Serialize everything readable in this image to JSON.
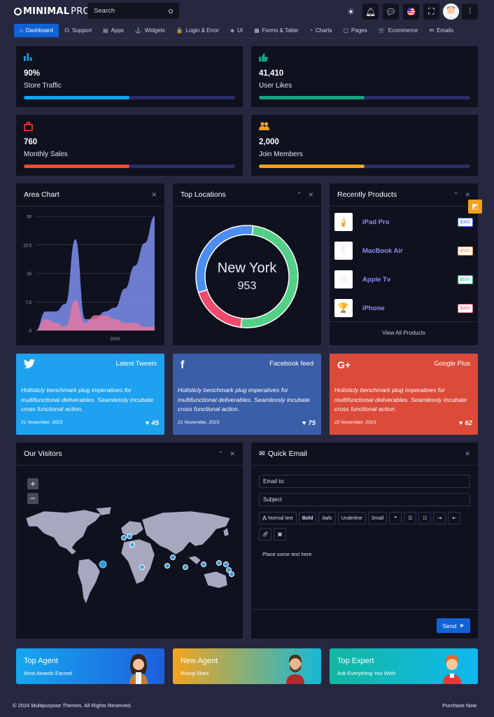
{
  "brand": {
    "bold": "MINIMAL",
    "thin": "PRO"
  },
  "search": {
    "placeholder": "Search"
  },
  "topbar_icons": [
    "sun-icon",
    "bell-icon",
    "chat-icon",
    "flag-us-icon",
    "fullscreen-icon",
    "user-avatar",
    "sliders-icon"
  ],
  "nav": [
    {
      "label": "Dashboard",
      "icon": "home-icon",
      "glyph": "⌂"
    },
    {
      "label": "Support",
      "icon": "headset-icon",
      "glyph": "☊"
    },
    {
      "label": "Apps",
      "icon": "apps-icon",
      "glyph": "▤"
    },
    {
      "label": "Widgets",
      "icon": "widgets-icon",
      "glyph": "⚓"
    },
    {
      "label": "Login & Error",
      "icon": "lock-icon",
      "glyph": "🔒"
    },
    {
      "label": "UI",
      "icon": "cube-icon",
      "glyph": "◈"
    },
    {
      "label": "Forms & Table",
      "icon": "table-icon",
      "glyph": "▦"
    },
    {
      "label": "Charts",
      "icon": "chart-icon",
      "glyph": "◔"
    },
    {
      "label": "Pages",
      "icon": "page-icon",
      "glyph": "▢"
    },
    {
      "label": "Ecommerce",
      "icon": "cart-icon",
      "glyph": "🛒"
    },
    {
      "label": "Emails",
      "icon": "mail-icon",
      "glyph": "✉"
    }
  ],
  "stats": [
    {
      "value": "90%",
      "label": "Store Traffic",
      "progress": 0.5,
      "color": "#0aa8f0",
      "icon": "bar-chart-icon",
      "glyph": "📊"
    },
    {
      "value": "41,410",
      "label": "User Likes",
      "progress": 0.5,
      "color": "#14a485",
      "icon": "thumbs-up-icon",
      "glyph": "👍"
    },
    {
      "value": "760",
      "label": "Monthly Sales",
      "progress": 0.5,
      "color": "#ee4e2f",
      "icon": "shopping-bag-icon",
      "glyph": "👜"
    },
    {
      "value": "2,000",
      "label": "Join Members",
      "progress": 0.5,
      "color": "#f3a01c",
      "icon": "users-icon",
      "glyph": "👥"
    }
  ],
  "area_chart": {
    "title": "Area Chart"
  },
  "chart_data": {
    "type": "area",
    "x": [
      2018.0,
      2018.25,
      2018.5,
      2018.75,
      2019.0,
      2019.25,
      2019.5,
      2019.75,
      2020.0,
      2020.25,
      2020.5,
      2020.75,
      2021.0
    ],
    "x_tick_labels": [
      "2020"
    ],
    "series": [
      {
        "values": [
          0,
          5,
          5,
          7,
          24,
          3,
          3,
          5,
          6,
          11,
          17,
          23,
          30
        ],
        "color": "#7f8ff0"
      },
      {
        "values": [
          0,
          3,
          2,
          1,
          8,
          2,
          4,
          4,
          3,
          2,
          2,
          1,
          1
        ],
        "color": "#e8779f"
      }
    ],
    "ylim": [
      0,
      30
    ],
    "yticks": [
      "0",
      "7.5",
      "15",
      "22.5",
      "30"
    ],
    "grid": true
  },
  "donut": {
    "title": "Top Locations",
    "center_label": "New York",
    "center_value": "953",
    "segments": [
      {
        "value": 50,
        "color": "#53d086"
      },
      {
        "value": 18,
        "color": "#ef4a6b"
      },
      {
        "value": 32,
        "color": "#4c8df1"
      }
    ]
  },
  "products": {
    "title": "Recently Products",
    "items": [
      {
        "name": "iPad Pro",
        "price": "$300",
        "color": "#3a6be8",
        "glyph": "🍦"
      },
      {
        "name": "MacBook Air",
        "price": "$500",
        "color": "#f08a36",
        "glyph": "🎖"
      },
      {
        "name": "Apple Tv",
        "price": "$500",
        "color": "#20b58a",
        "glyph": "⚙"
      },
      {
        "name": "iPhone",
        "price": "$450",
        "color": "#e45a6a",
        "glyph": "🏆"
      }
    ],
    "footer": "View All Products"
  },
  "social": [
    {
      "title": "Latest Tweets",
      "text": "Holisticly benchmark plug imperatives for multifunctional deliverables. Seamlessly incubate cross functional action.",
      "date": "21 November, 2023",
      "likes": "45",
      "bg": "#1ea1ef",
      "icon": "twitter-icon",
      "glyph": "🐦"
    },
    {
      "title": "Facebook feed",
      "text": "Holisticly benchmark plug imperatives for multifunctional deliverables. Seamlessly incubate cross functional action.",
      "date": "21 November, 2023",
      "likes": "75",
      "bg": "#3a5ea7",
      "icon": "facebook-icon",
      "glyph": "f"
    },
    {
      "title": "Google Plus",
      "text": "Holisticly benchmark plug imperatives for multifunctional deliverables. Seamlessly incubate cross functional action.",
      "date": "22 November, 2023",
      "likes": "62",
      "bg": "#dc4a39",
      "icon": "google-plus-icon",
      "glyph": "G+"
    }
  ],
  "visitors": {
    "title": "Our Visitors",
    "zoom_in": "+",
    "zoom_out": "−"
  },
  "email": {
    "title": "Quick Email",
    "to_placeholder": "Email to:",
    "subject_placeholder": "Subject",
    "toolbar": [
      "Normal text",
      "Bold",
      "Italic",
      "Underline",
      "Small"
    ],
    "body_placeholder": "Place some text here",
    "send": "Send"
  },
  "promos": [
    {
      "title": "Top Agent",
      "subtitle": "Most Awards Earned",
      "bg": "linear-gradient(90deg,#16a7f0,#1d5fdc)"
    },
    {
      "title": "New Agent",
      "subtitle": "Rising Stars",
      "bg": "linear-gradient(90deg,#f3a41f,#16b9d6)"
    },
    {
      "title": "Top Expert",
      "subtitle": "Ask Everything You Wish",
      "bg": "linear-gradient(90deg,#12b8a0,#10b8ef)"
    }
  ],
  "footer": {
    "copyright_prefix": "© 2024 ",
    "company": "Multipurpose Themes",
    "copyright_suffix": ". All Rights Reserved.",
    "purchase": "Purchase Now"
  }
}
